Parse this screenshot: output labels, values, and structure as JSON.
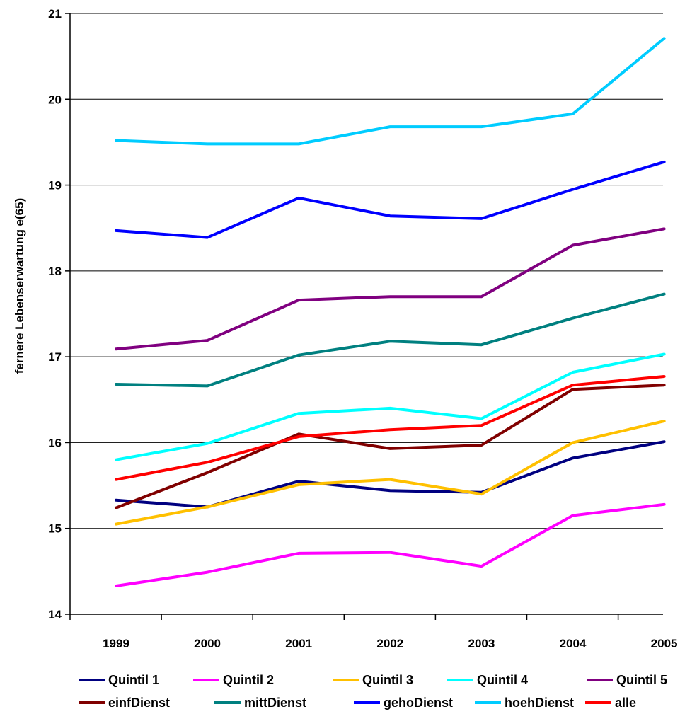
{
  "chart_data": {
    "type": "line",
    "title": "",
    "xlabel": "",
    "ylabel": "fernere Lebenserwartung e(65)",
    "ylim": [
      14,
      21
    ],
    "yticks": [
      "14",
      "15",
      "16",
      "17",
      "18",
      "19",
      "20",
      "21"
    ],
    "categories": [
      "1999",
      "2000",
      "2001",
      "2002",
      "2003",
      "2004",
      "2005"
    ],
    "grid": "horizontal",
    "legend_position": "bottom",
    "series": [
      {
        "name": "Quintil 1",
        "color": "#000080",
        "values": [
          15.33,
          15.25,
          15.55,
          15.44,
          15.42,
          15.82,
          16.01
        ]
      },
      {
        "name": "Quintil 2",
        "color": "#ff00ff",
        "values": [
          14.33,
          14.49,
          14.71,
          14.72,
          14.56,
          15.15,
          15.28
        ]
      },
      {
        "name": "Quintil 3",
        "color": "#ffc000",
        "values": [
          15.05,
          15.25,
          15.51,
          15.57,
          15.4,
          16.0,
          16.25
        ]
      },
      {
        "name": "Quintil 4",
        "color": "#00ffff",
        "values": [
          15.8,
          15.99,
          16.34,
          16.4,
          16.28,
          16.82,
          17.03
        ]
      },
      {
        "name": "Quintil 5",
        "color": "#800080",
        "values": [
          17.09,
          17.19,
          17.66,
          17.7,
          17.7,
          18.3,
          18.49
        ]
      },
      {
        "name": "einfDienst",
        "color": "#800000",
        "values": [
          15.24,
          15.65,
          16.1,
          15.93,
          15.97,
          16.62,
          16.67
        ]
      },
      {
        "name": "mittDienst",
        "color": "#008080",
        "values": [
          16.68,
          16.66,
          17.02,
          17.18,
          17.14,
          17.45,
          17.73
        ]
      },
      {
        "name": "gehoDienst",
        "color": "#0000ff",
        "values": [
          18.47,
          18.39,
          18.85,
          18.64,
          18.61,
          18.95,
          19.27
        ]
      },
      {
        "name": "hoehDienst",
        "color": "#00ccff",
        "values": [
          19.52,
          19.48,
          19.48,
          19.68,
          19.68,
          19.83,
          20.71
        ]
      },
      {
        "name": "alle",
        "color": "#ff0000",
        "values": [
          15.57,
          15.77,
          16.07,
          16.15,
          16.2,
          16.67,
          16.77
        ]
      }
    ]
  }
}
